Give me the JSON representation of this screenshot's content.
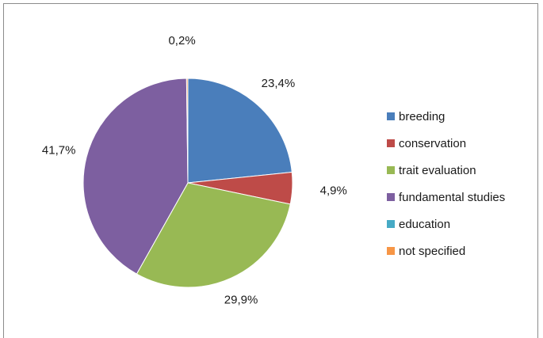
{
  "chart_data": {
    "type": "pie",
    "title": "",
    "slices": [
      {
        "label": "breeding",
        "value": 23.4,
        "display": "23,4%",
        "color": "#4a7ebb"
      },
      {
        "label": "conservation",
        "value": 4.9,
        "display": "4,9%",
        "color": "#be4b48"
      },
      {
        "label": "trait evaluation",
        "value": 29.9,
        "display": "29,9%",
        "color": "#98b954"
      },
      {
        "label": "fundamental studies",
        "value": 41.7,
        "display": "41,7%",
        "color": "#7d5fa0"
      },
      {
        "label": "education",
        "value": 0.0,
        "display": "",
        "color": "#46aac5"
      },
      {
        "label": "not specified",
        "value": 0.2,
        "display": "0,2%",
        "color": "#f79646"
      }
    ],
    "legend_position": "right",
    "start": "top, clockwise"
  }
}
